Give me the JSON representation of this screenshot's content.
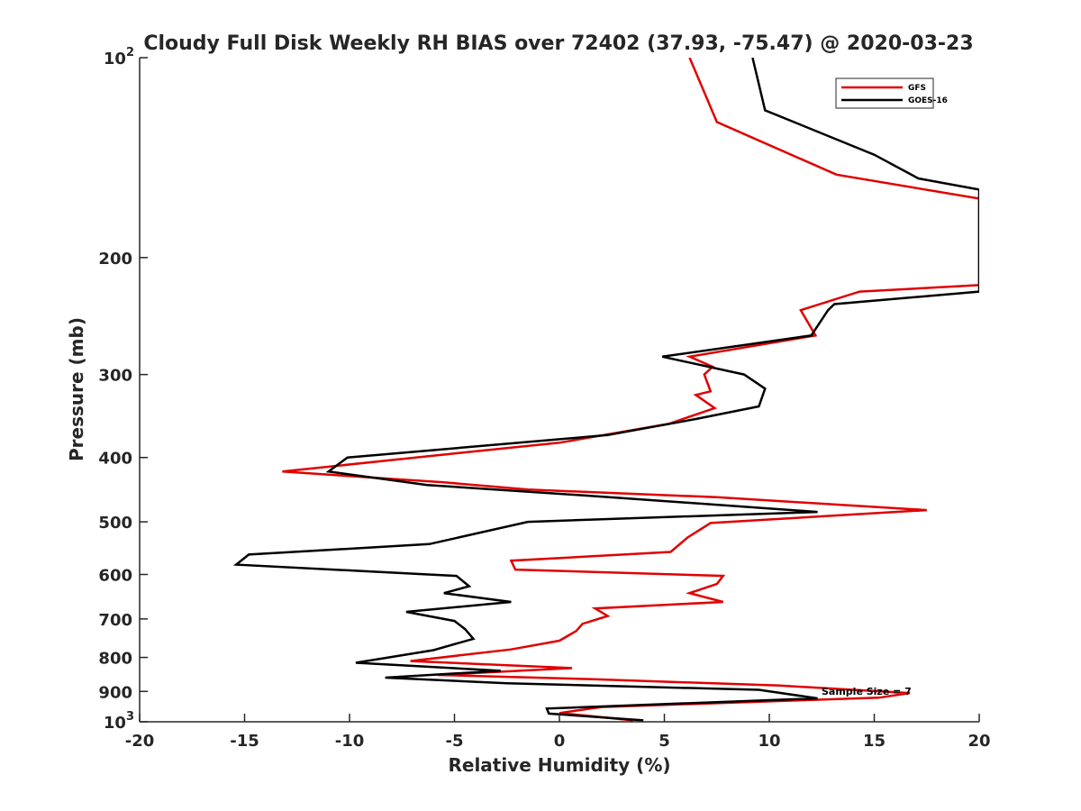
{
  "chart_data": {
    "type": "line",
    "title": "Cloudy Full Disk Weekly RH BIAS over 72402 (37.93, -75.47) @ 2020-03-23",
    "xlabel": "Relative Humidity (%)",
    "ylabel": "Pressure (mb)",
    "xlim": [
      -20,
      20
    ],
    "ylim": [
      1000,
      100
    ],
    "y_scale": "log",
    "y_reversed": true,
    "grid": false,
    "legend_position": "top-right",
    "x_ticks": [
      "-20",
      "-15",
      "-10",
      "-5",
      "0",
      "5",
      "10",
      "15",
      "20"
    ],
    "y_tick_values": [
      200,
      300,
      400,
      500,
      600,
      700,
      800,
      900
    ],
    "y_tick_labels": [
      "200",
      "300",
      "400",
      "500",
      "600",
      "700",
      "800",
      "900"
    ],
    "y_decade_labels": [
      {
        "value": 100,
        "base": "10",
        "exp": "2"
      },
      {
        "value": 1000,
        "base": "10",
        "exp": "3"
      }
    ],
    "annotation": "Sample Size = 7",
    "series": [
      {
        "name": "GFS",
        "color": "#e00000",
        "points": [
          [
            6.2,
            100
          ],
          [
            7.5,
            125
          ],
          [
            13.2,
            150
          ],
          [
            20,
            163
          ],
          [
            20,
            220
          ],
          [
            14.3,
            225
          ],
          [
            11.5,
            240
          ],
          [
            12.2,
            262
          ],
          [
            6.2,
            282
          ],
          [
            7.3,
            292
          ],
          [
            6.9,
            300
          ],
          [
            7.2,
            318
          ],
          [
            6.5,
            322
          ],
          [
            7.4,
            337
          ],
          [
            5.2,
            356
          ],
          [
            0,
            380
          ],
          [
            -5.2,
            395
          ],
          [
            -13.2,
            420
          ],
          [
            -5.5,
            436
          ],
          [
            -1.5,
            447
          ],
          [
            7.5,
            459
          ],
          [
            17.5,
            480
          ],
          [
            7.2,
            502
          ],
          [
            6.1,
            528
          ],
          [
            5.3,
            555
          ],
          [
            -2.3,
            572
          ],
          [
            -2.1,
            590
          ],
          [
            7.8,
            603
          ],
          [
            7.5,
            620
          ],
          [
            6.2,
            640
          ],
          [
            7.8,
            660
          ],
          [
            1.7,
            675
          ],
          [
            2.3,
            693
          ],
          [
            1.1,
            712
          ],
          [
            0.8,
            730
          ],
          [
            0,
            755
          ],
          [
            -2.3,
            778
          ],
          [
            -7.1,
            810
          ],
          [
            0.6,
            830
          ],
          [
            -5.8,
            850
          ],
          [
            1.6,
            863
          ],
          [
            10.5,
            882
          ],
          [
            16.7,
            905
          ],
          [
            15.2,
            920
          ],
          [
            2,
            950
          ],
          [
            0,
            970
          ],
          [
            3.5,
            995
          ]
        ]
      },
      {
        "name": "GOES-16",
        "color": "#000000",
        "points": [
          [
            9.2,
            100
          ],
          [
            9.8,
            120
          ],
          [
            15,
            140
          ],
          [
            17.1,
            152
          ],
          [
            20,
            158
          ],
          [
            20,
            225
          ],
          [
            13.1,
            235
          ],
          [
            12.8,
            240
          ],
          [
            12,
            262
          ],
          [
            4.9,
            282
          ],
          [
            8.8,
            300
          ],
          [
            9.8,
            315
          ],
          [
            9.5,
            335
          ],
          [
            6.5,
            350
          ],
          [
            2.3,
            370
          ],
          [
            -10.1,
            400
          ],
          [
            -11,
            420
          ],
          [
            -6.3,
            440
          ],
          [
            2,
            458
          ],
          [
            12.3,
            483
          ],
          [
            -1.5,
            500
          ],
          [
            -6.2,
            540
          ],
          [
            -14.8,
            560
          ],
          [
            -15.4,
            580
          ],
          [
            -4.9,
            603
          ],
          [
            -4.3,
            625
          ],
          [
            -5.5,
            640
          ],
          [
            -2.3,
            660
          ],
          [
            -7.3,
            683
          ],
          [
            -5,
            705
          ],
          [
            -4.5,
            725
          ],
          [
            -4.1,
            750
          ],
          [
            -6,
            780
          ],
          [
            -9.7,
            815
          ],
          [
            -2.8,
            838
          ],
          [
            -8.3,
            858
          ],
          [
            -2.5,
            875
          ],
          [
            9.5,
            895
          ],
          [
            12.3,
            922
          ],
          [
            -0.6,
            955
          ],
          [
            -0.5,
            972
          ],
          [
            4,
            995
          ]
        ]
      }
    ]
  }
}
